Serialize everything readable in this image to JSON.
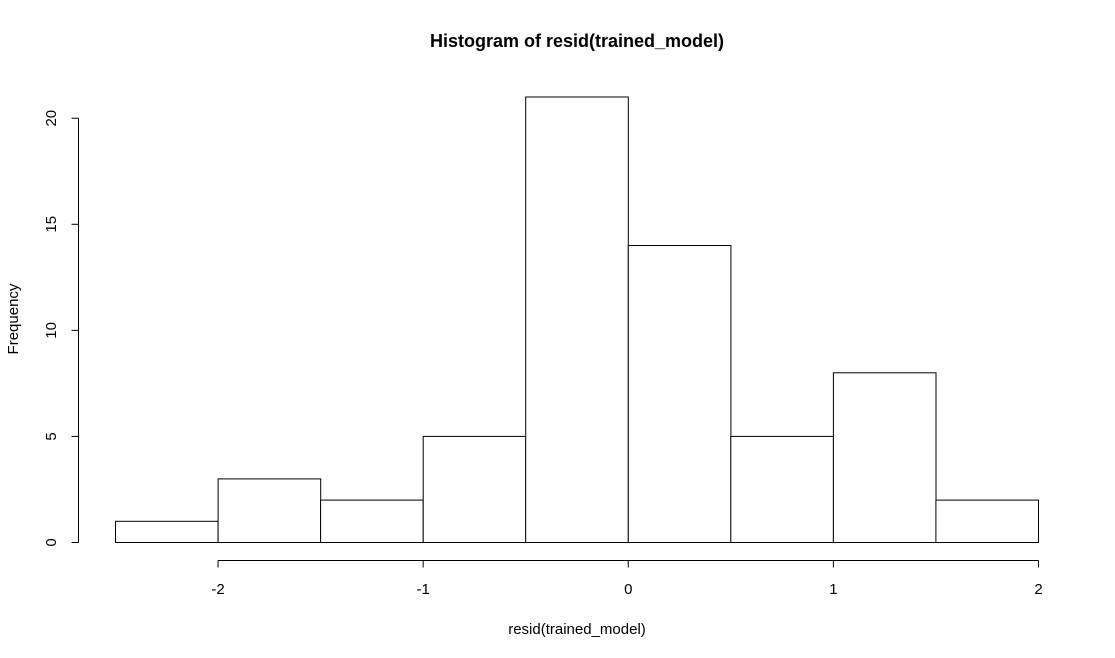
{
  "chart_data": {
    "type": "bar",
    "title": "Histogram of resid(trained_model)",
    "xlabel": "resid(trained_model)",
    "ylabel": "Frequency",
    "bins": [
      {
        "x0": -2.5,
        "x1": -2.0,
        "count": 1
      },
      {
        "x0": -2.0,
        "x1": -1.5,
        "count": 3
      },
      {
        "x0": -1.5,
        "x1": -1.0,
        "count": 2
      },
      {
        "x0": -1.0,
        "x1": -0.5,
        "count": 5
      },
      {
        "x0": -0.5,
        "x1": 0.0,
        "count": 21
      },
      {
        "x0": 0.0,
        "x1": 0.5,
        "count": 14
      },
      {
        "x0": 0.5,
        "x1": 1.0,
        "count": 5
      },
      {
        "x0": 1.0,
        "x1": 1.5,
        "count": 8
      },
      {
        "x0": 1.5,
        "x1": 2.0,
        "count": 2
      }
    ],
    "xlim": [
      -2.5,
      2.0
    ],
    "ylim": [
      0,
      21
    ],
    "x_ticks": [
      -2,
      -1,
      0,
      1,
      2
    ],
    "x_tick_labels": [
      "-2",
      "-1",
      "0",
      "1",
      "2"
    ],
    "y_ticks": [
      0,
      5,
      10,
      15,
      20
    ],
    "y_tick_labels": [
      "0",
      "5",
      "10",
      "15",
      "20"
    ],
    "grid": false,
    "legend": "none",
    "colors": {
      "bar_fill": "#ffffff",
      "bar_stroke": "#000000",
      "axis": "#000000",
      "background": "#ffffff"
    }
  }
}
